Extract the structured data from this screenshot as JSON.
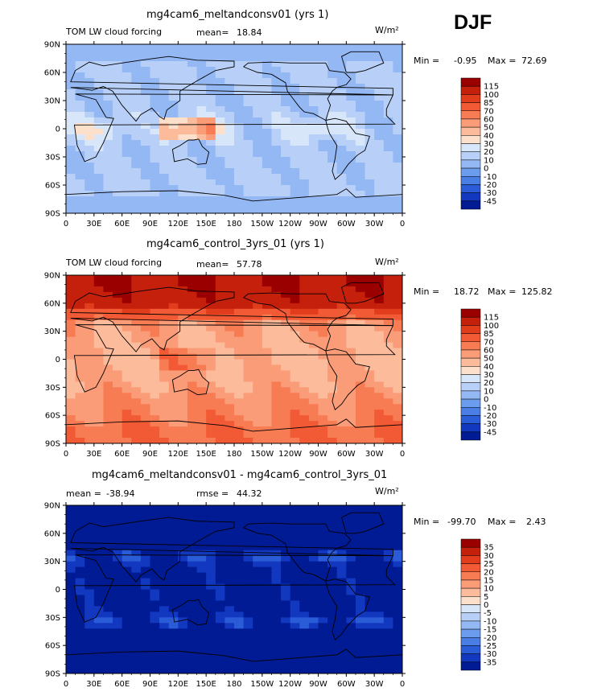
{
  "season": "DJF",
  "axes": {
    "lat_ticks": [
      "90N",
      "60N",
      "30N",
      "0",
      "30S",
      "60S",
      "90S"
    ],
    "lon_ticks": [
      "0",
      "30E",
      "60E",
      "90E",
      "120E",
      "150E",
      "180",
      "150W",
      "120W",
      "90W",
      "60W",
      "30W",
      "0"
    ]
  },
  "chart_data": [
    {
      "type": "heatmap",
      "title": "mg4cam6_meltandconsv01 (yrs 1)",
      "variable": "TOM LW cloud forcing",
      "units": "W/m²",
      "mean_label": "mean=",
      "mean": "18.84",
      "min_label": "Min =",
      "min": "-0.95",
      "max_label": "Max =",
      "max": "72.69",
      "xlim": [
        0,
        360
      ],
      "ylim": [
        -90,
        90
      ],
      "levels": [
        "115",
        "100",
        "85",
        "70",
        "60",
        "50",
        "40",
        "30",
        "20",
        "10",
        "0",
        "-10",
        "-20",
        "-30",
        "-45"
      ],
      "colors": [
        "#9b0000",
        "#c5200c",
        "#e13c1c",
        "#f15a34",
        "#f77c54",
        "#fa9c78",
        "#fcbc9c",
        "#fde0cc",
        "#d8e6fa",
        "#b8d0f8",
        "#94b8f4",
        "#6c9cee",
        "#4a7ee4",
        "#2a5cd8",
        "#1238c0",
        "#001b94"
      ]
    },
    {
      "type": "heatmap",
      "title": "mg4cam6_control_3yrs_01 (yrs 1)",
      "variable": "TOM LW cloud forcing",
      "units": "W/m²",
      "mean_label": "mean=",
      "mean": "57.78",
      "min_label": "Min =",
      "min": "18.72",
      "max_label": "Max =",
      "max": "125.82",
      "xlim": [
        0,
        360
      ],
      "ylim": [
        -90,
        90
      ],
      "levels": [
        "115",
        "100",
        "85",
        "70",
        "60",
        "50",
        "40",
        "30",
        "20",
        "10",
        "0",
        "-10",
        "-20",
        "-30",
        "-45"
      ],
      "colors": [
        "#9b0000",
        "#c5200c",
        "#e13c1c",
        "#f15a34",
        "#f77c54",
        "#fa9c78",
        "#fcbc9c",
        "#fde0cc",
        "#d8e6fa",
        "#b8d0f8",
        "#94b8f4",
        "#6c9cee",
        "#4a7ee4",
        "#2a5cd8",
        "#1238c0",
        "#001b94"
      ]
    },
    {
      "type": "heatmap",
      "title": "mg4cam6_meltandconsv01 - mg4cam6_control_3yrs_01",
      "variable": "",
      "units": "W/m²",
      "mean_label": "mean =",
      "mean": "-38.94",
      "rmse_label": "rmse =",
      "rmse": "44.32",
      "min_label": "Min =",
      "min": "-99.70",
      "max_label": "Max =",
      "max": "2.43",
      "xlim": [
        0,
        360
      ],
      "ylim": [
        -90,
        90
      ],
      "levels": [
        "35",
        "30",
        "25",
        "20",
        "15",
        "10",
        "5",
        "0",
        "-5",
        "-10",
        "-15",
        "-20",
        "-25",
        "-30",
        "-35"
      ],
      "colors": [
        "#9b0000",
        "#c5200c",
        "#e13c1c",
        "#f15a34",
        "#f77c54",
        "#fa9c78",
        "#fcbc9c",
        "#fde0cc",
        "#d8e6fa",
        "#b8d0f8",
        "#94b8f4",
        "#6c9cee",
        "#4a7ee4",
        "#2a5cd8",
        "#1238c0",
        "#001b94"
      ]
    }
  ]
}
